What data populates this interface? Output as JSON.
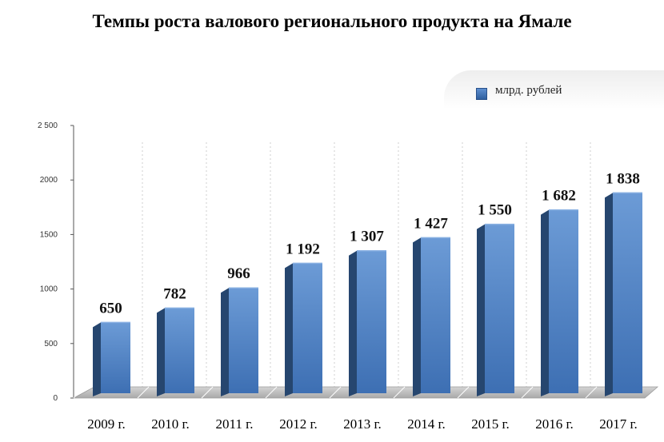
{
  "chart_data": {
    "type": "bar",
    "title": "Темпы роста валового регионального продукта на Ямале",
    "categories": [
      "2009 г.",
      "2010 г.",
      "2011 г.",
      "2012 г.",
      "2013 г.",
      "2014 г.",
      "2015 г.",
      "2016 г.",
      "2017 г."
    ],
    "series": [
      {
        "name": "млрд. рублей",
        "values": [
          650,
          782,
          966,
          1192,
          1307,
          1427,
          1550,
          1682,
          1838
        ],
        "data_labels": [
          "650",
          "782",
          "966",
          "1 192",
          "1 307",
          "1 427",
          "1 550",
          "1 682",
          "1 838"
        ]
      }
    ],
    "y_ticks": [
      {
        "value": 0,
        "label": "0"
      },
      {
        "value": 500,
        "label": "500"
      },
      {
        "value": 1000,
        "label": "1000"
      },
      {
        "value": 1500,
        "label": "1500"
      },
      {
        "value": 2000,
        "label": "2000"
      },
      {
        "value": 2500,
        "label": "2 500"
      }
    ],
    "xlabel": "",
    "ylabel": "",
    "ylim": [
      0,
      2500
    ],
    "grid": "vertical dotted",
    "legend_position": "top-right",
    "colors": {
      "bar_front_top": "#6c9bd6",
      "bar_front_bottom": "#3d6fb3",
      "bar_side": "#26466f",
      "bar_top": "#89b0e2",
      "floor": "#bdbdbd"
    }
  }
}
